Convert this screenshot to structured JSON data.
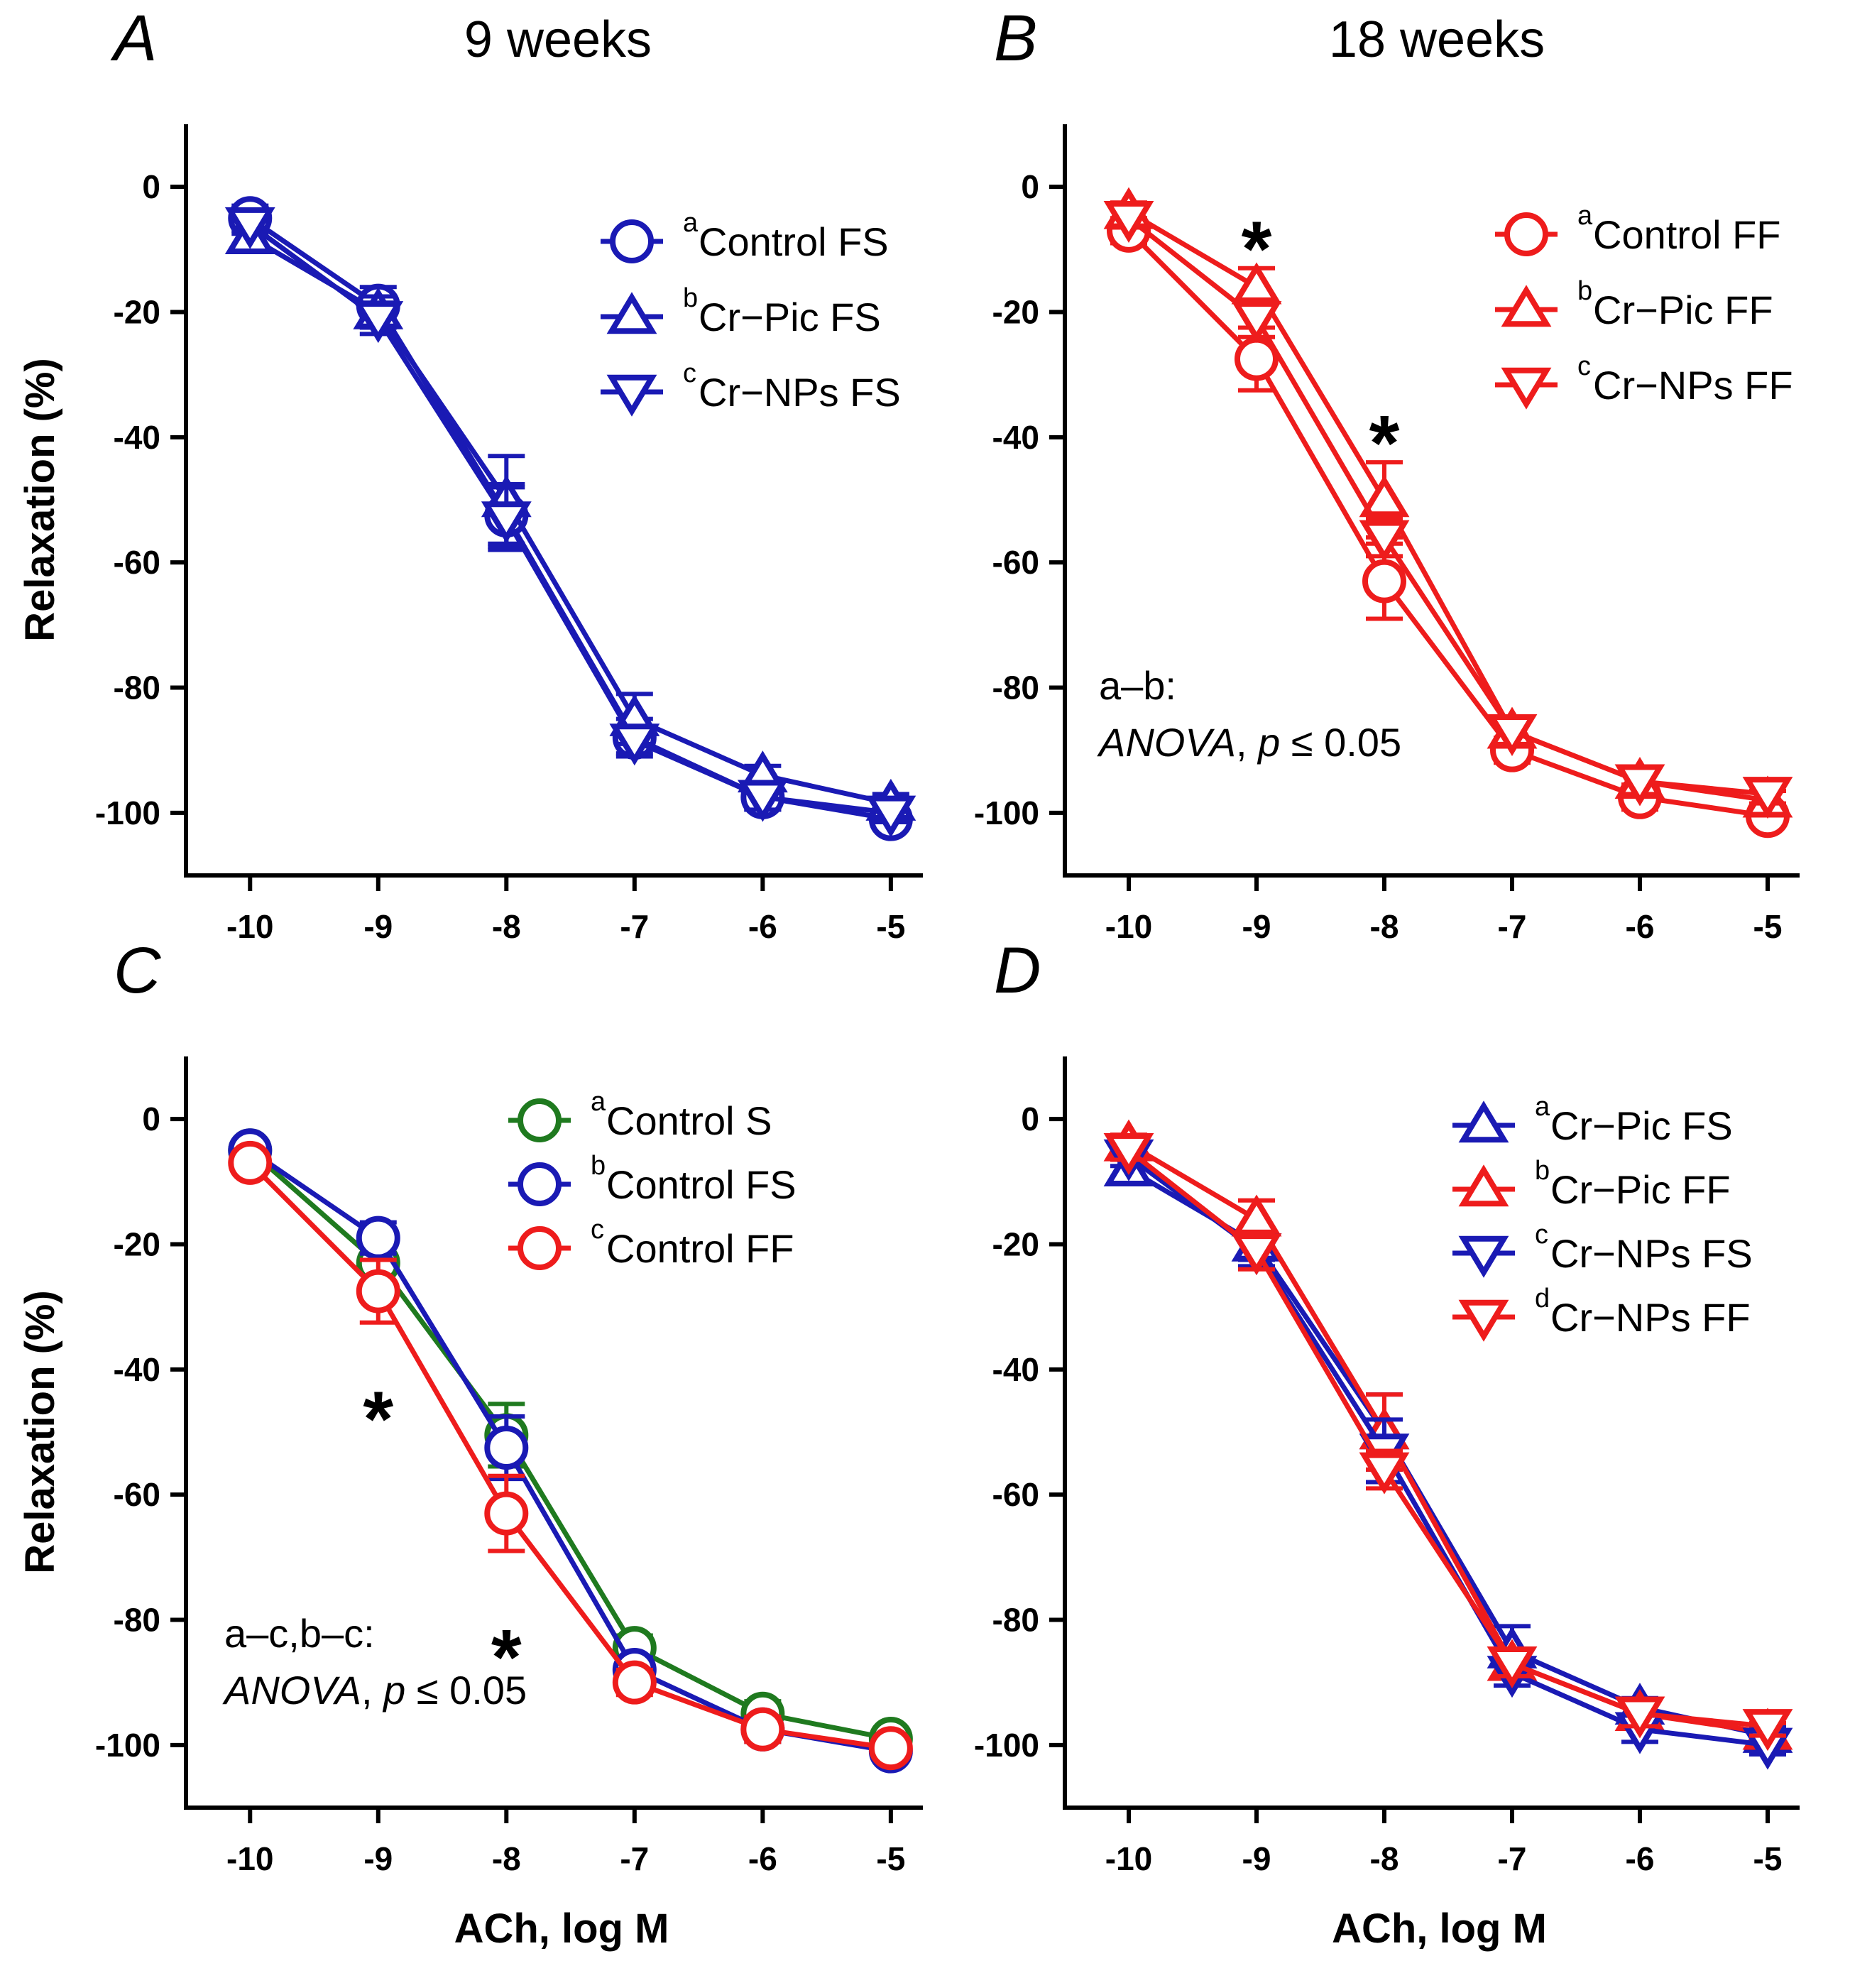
{
  "chart_data": [
    {
      "id": "A",
      "type": "line",
      "panel_letter": "A",
      "title": "9 weeks",
      "xlabel": "",
      "ylabel": "Relaxation (%)",
      "x": [
        -10,
        -9,
        -8,
        -7,
        -6,
        -5
      ],
      "xticks": [
        "-10",
        "-9",
        "-8",
        "-7",
        "-6",
        "-5"
      ],
      "yticks": [
        "0",
        "-20",
        "-40",
        "-60",
        "-80",
        "-100"
      ],
      "ylim": [
        -110,
        10
      ],
      "xlim": [
        -10.5,
        -4.75
      ],
      "legend_position": "top-right",
      "series": [
        {
          "sup": "a",
          "name": "Control FS",
          "color": "#1a1ab4",
          "marker": "circle",
          "values": [
            -5,
            -19,
            -52.5,
            -88,
            -97.5,
            -101
          ],
          "err": [
            2,
            3,
            5,
            3,
            2,
            1.5
          ]
        },
        {
          "sup": "b",
          "name": "Cr−Pic FS",
          "color": "#1a1ab4",
          "marker": "triangle-up",
          "values": [
            -8,
            -20,
            -50,
            -85,
            -94,
            -98.5
          ],
          "err": [
            1.5,
            2.5,
            7,
            4,
            1.5,
            1.5
          ]
        },
        {
          "sup": "c",
          "name": "Cr−NPs FS",
          "color": "#1a1ab4",
          "marker": "triangle-down",
          "values": [
            -6,
            -21,
            -53,
            -88.5,
            -97.5,
            -100
          ],
          "err": [
            1.5,
            2.5,
            5,
            2,
            2,
            1.5
          ]
        }
      ],
      "annotations": [],
      "stat_lines": []
    },
    {
      "id": "B",
      "type": "line",
      "panel_letter": "B",
      "title": "18 weeks",
      "xlabel": "",
      "ylabel": "",
      "x": [
        -10,
        -9,
        -8,
        -7,
        -6,
        -5
      ],
      "xticks": [
        "-10",
        "-9",
        "-8",
        "-7",
        "-6",
        "-5"
      ],
      "yticks": [
        "0",
        "-20",
        "-40",
        "-60",
        "-80",
        "-100"
      ],
      "ylim": [
        -110,
        10
      ],
      "xlim": [
        -10.5,
        -4.75
      ],
      "legend_position": "top-right",
      "series": [
        {
          "sup": "a",
          "name": "Control FF",
          "color": "#ee1c1c",
          "marker": "circle",
          "values": [
            -7,
            -27.5,
            -63,
            -90,
            -97.5,
            -100.5
          ],
          "err": [
            2,
            5,
            6,
            2,
            2,
            1.5
          ]
        },
        {
          "sup": "b",
          "name": "Cr−Pic FF",
          "color": "#ee1c1c",
          "marker": "triangle-up",
          "values": [
            -4,
            -16,
            -50,
            -87,
            -95,
            -98
          ],
          "err": [
            1.5,
            3,
            6,
            2,
            2,
            1.5
          ]
        },
        {
          "sup": "c",
          "name": "Cr−NPs FF",
          "color": "#ee1c1c",
          "marker": "triangle-down",
          "values": [
            -5,
            -21,
            -56,
            -87,
            -95,
            -97
          ],
          "err": [
            1.5,
            3,
            3,
            2,
            2,
            1.5
          ]
        }
      ],
      "annotations": [
        {
          "text": "*",
          "x": -9,
          "y": -8
        },
        {
          "text": "*",
          "x": -8,
          "y": -39
        }
      ],
      "stat_lines": [
        "a–b:",
        "ANOVA",
        ", ",
        "p",
        " ≤ 0.05"
      ]
    },
    {
      "id": "C",
      "type": "line",
      "panel_letter": "C",
      "title": "",
      "xlabel": "ACh, log M",
      "ylabel": "Relaxation (%)",
      "x": [
        -10,
        -9,
        -8,
        -7,
        -6,
        -5
      ],
      "xticks": [
        "-10",
        "-9",
        "-8",
        "-7",
        "-6",
        "-5"
      ],
      "yticks": [
        "0",
        "-20",
        "-40",
        "-60",
        "-80",
        "-100"
      ],
      "ylim": [
        -110,
        10
      ],
      "xlim": [
        -10.5,
        -4.75
      ],
      "legend_position": "top-right",
      "series": [
        {
          "sup": "a",
          "name": "Control S",
          "color": "#1f7a1f",
          "marker": "circle",
          "values": [
            -5,
            -23,
            -50.5,
            -84.5,
            -95,
            -99
          ],
          "err": [
            1.5,
            3,
            5,
            2,
            2,
            1.5
          ]
        },
        {
          "sup": "b",
          "name": "Control FS",
          "color": "#1a1ab4",
          "marker": "circle",
          "values": [
            -5,
            -19,
            -52.5,
            -88,
            -97.5,
            -101
          ],
          "err": [
            1.5,
            2.5,
            5,
            2,
            2,
            1.5
          ]
        },
        {
          "sup": "c",
          "name": "Control FF",
          "color": "#ee1c1c",
          "marker": "circle",
          "values": [
            -7,
            -27.5,
            -63,
            -90,
            -97.5,
            -100.5
          ],
          "err": [
            1.5,
            5,
            6,
            2,
            2,
            1.5
          ]
        }
      ],
      "annotations": [
        {
          "text": "*",
          "x": -9,
          "y": -46
        },
        {
          "text": "*",
          "x": -8,
          "y": -84
        }
      ],
      "stat_lines": [
        "a–c,b–c:",
        "ANOVA",
        ", ",
        "p",
        " ≤ 0.05"
      ]
    },
    {
      "id": "D",
      "type": "line",
      "panel_letter": "D",
      "title": "",
      "xlabel": "ACh, log M",
      "ylabel": "",
      "x": [
        -10,
        -9,
        -8,
        -7,
        -6,
        -5
      ],
      "xticks": [
        "-10",
        "-9",
        "-8",
        "-7",
        "-6",
        "-5"
      ],
      "yticks": [
        "0",
        "-20",
        "-40",
        "-60",
        "-80",
        "-100"
      ],
      "ylim": [
        -110,
        10
      ],
      "xlim": [
        -10.5,
        -4.75
      ],
      "legend_position": "top-right",
      "series": [
        {
          "sup": "a",
          "name": "Cr−Pic FS",
          "color": "#1a1ab4",
          "marker": "triangle-up",
          "values": [
            -8,
            -20,
            -50,
            -85,
            -94,
            -98.5
          ],
          "err": [
            1.5,
            2.5,
            6,
            4,
            1.5,
            1.5
          ]
        },
        {
          "sup": "b",
          "name": "Cr−Pic FF",
          "color": "#ee1c1c",
          "marker": "triangle-up",
          "values": [
            -4,
            -16,
            -50,
            -87,
            -95,
            -98
          ],
          "err": [
            1.5,
            3,
            6,
            2,
            2,
            1.5
          ]
        },
        {
          "sup": "c",
          "name": "Cr−NPs FS",
          "color": "#1a1ab4",
          "marker": "triangle-down",
          "values": [
            -6,
            -21,
            -53,
            -88.5,
            -97.5,
            -100
          ],
          "err": [
            1.5,
            2.5,
            5,
            2,
            2,
            1.5
          ]
        },
        {
          "sup": "d",
          "name": "Cr−NPs FF",
          "color": "#ee1c1c",
          "marker": "triangle-down",
          "values": [
            -5,
            -21,
            -56,
            -87,
            -95,
            -97
          ],
          "err": [
            1.5,
            3,
            3,
            2,
            2,
            1.5
          ]
        }
      ],
      "annotations": [],
      "stat_lines": []
    }
  ]
}
